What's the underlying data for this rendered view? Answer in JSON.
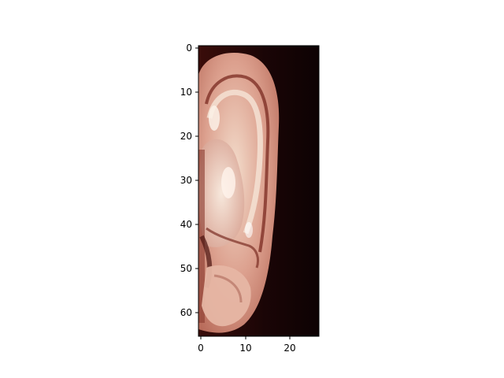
{
  "image": {
    "subject": "ear-close-up",
    "colors": {
      "background": "#120304",
      "skin_mid": "#d79a88",
      "skin_light": "#f0d6c6",
      "shadow": "#5a1a14"
    }
  },
  "axes": {
    "x": {
      "ticks": [
        0,
        10,
        20
      ],
      "tick_labels": [
        "0",
        "10",
        "20"
      ],
      "range": [
        -0.5,
        26.5
      ]
    },
    "y": {
      "ticks": [
        0,
        10,
        20,
        30,
        40,
        50,
        60
      ],
      "tick_labels": [
        "0",
        "10",
        "20",
        "30",
        "40",
        "50",
        "60"
      ],
      "range": [
        65.5,
        -0.5
      ]
    }
  }
}
